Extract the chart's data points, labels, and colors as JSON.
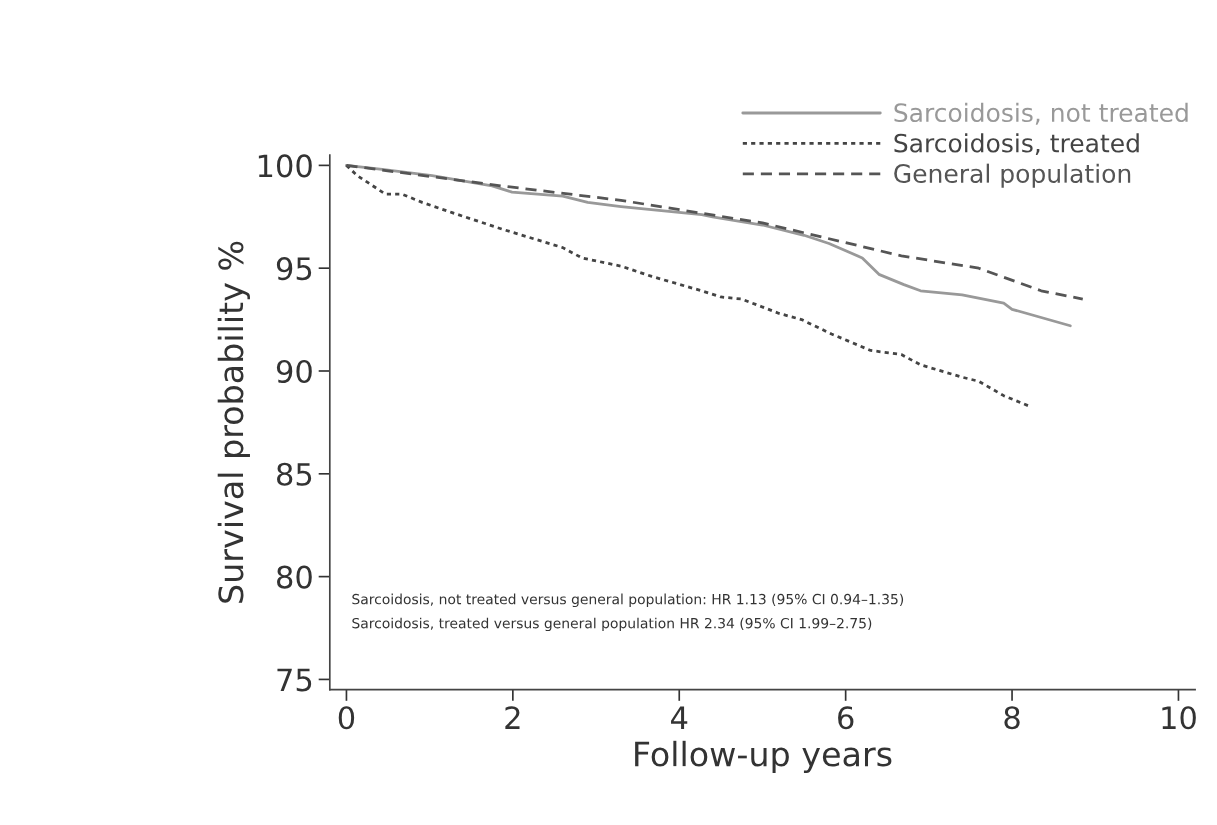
{
  "chart_data": {
    "type": "line",
    "xlabel": "Follow-up years",
    "ylabel": "Survival probability %",
    "xlim": [
      -0.2,
      10.2
    ],
    "xticks": [
      0,
      2,
      4,
      6,
      8,
      10
    ],
    "yticks": [
      75,
      80,
      85,
      90,
      95,
      100
    ],
    "ylim": [
      74.5,
      100.5
    ],
    "grid": false,
    "legend": "top right",
    "series": [
      {
        "name": "Sarcoidosis, not treated",
        "color": "#999999",
        "line_style": "solid",
        "x": [
          0,
          0.43,
          1.03,
          1.75,
          1.99,
          2.6,
          2.9,
          3.3,
          4.27,
          4.4,
          5.0,
          5.5,
          5.8,
          6.2,
          6.4,
          6.7,
          6.9,
          7.4,
          7.9,
          8.0,
          8.7
        ],
        "values": [
          100,
          99.8,
          99.5,
          99.0,
          98.7,
          98.5,
          98.2,
          98.0,
          97.6,
          97.5,
          97.1,
          96.6,
          96.2,
          95.5,
          94.7,
          94.2,
          93.9,
          93.7,
          93.3,
          93.0,
          92.2
        ]
      },
      {
        "name": "Sarcoidosis, treated",
        "color": "#444444",
        "line_style": "dotted",
        "x": [
          0,
          0.13,
          0.47,
          0.67,
          0.91,
          1.27,
          1.87,
          2.6,
          2.83,
          3.3,
          3.67,
          4.27,
          4.5,
          4.75,
          5.2,
          5.47,
          5.83,
          6.3,
          6.67,
          6.9,
          7.4,
          7.6,
          7.9,
          8.2
        ],
        "values": [
          100,
          99.5,
          98.6,
          98.6,
          98.2,
          97.7,
          96.9,
          96.0,
          95.5,
          95.1,
          94.6,
          93.9,
          93.6,
          93.5,
          92.8,
          92.5,
          91.8,
          91.0,
          90.8,
          90.3,
          89.7,
          89.5,
          88.8,
          88.3
        ]
      },
      {
        "name": "General population",
        "color": "#555555",
        "line_style": "dashed",
        "x": [
          0,
          1.87,
          3.3,
          5.0,
          6.67,
          7.6,
          8.35,
          8.85
        ],
        "values": [
          100,
          99.0,
          98.3,
          97.2,
          95.6,
          95.0,
          93.9,
          93.5
        ]
      }
    ],
    "annotations": [
      "Sarcoidosis, not treated versus general population: HR 1.13 (95% CI 0.94–1.35)",
      "Sarcoidosis, treated versus general population HR 2.34 (95% CI 1.99–2.75)"
    ]
  }
}
